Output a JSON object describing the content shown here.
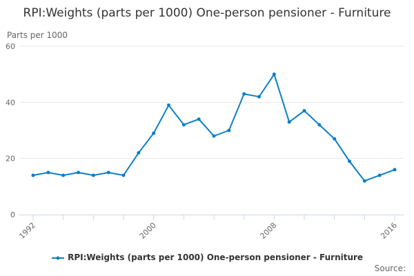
{
  "chart_data": {
    "type": "line",
    "title": "RPI:Weights (parts per 1000) One-person pensioner - Furniture",
    "ylabel": "Parts per 1000",
    "xlabel": "",
    "ylim": [
      0,
      60
    ],
    "yticks": [
      0,
      20,
      40,
      60
    ],
    "xtick_labels": [
      "1992",
      "2000",
      "2008",
      "2016"
    ],
    "grid": true,
    "legend_position": "bottom",
    "color": "#0a7fc4",
    "x": [
      1992,
      1993,
      1994,
      1995,
      1996,
      1997,
      1998,
      1999,
      2000,
      2001,
      2002,
      2003,
      2004,
      2005,
      2006,
      2007,
      2008,
      2009,
      2010,
      2011,
      2012,
      2013,
      2014,
      2015,
      2016
    ],
    "series": [
      {
        "name": "RPI:Weights (parts per 1000) One-person pensioner - Furniture",
        "values": [
          14,
          15,
          14,
          15,
          14,
          15,
          14,
          22,
          29,
          39,
          32,
          34,
          28,
          30,
          43,
          42,
          50,
          33,
          37,
          32,
          27,
          19,
          12,
          14,
          16
        ]
      }
    ]
  },
  "source_label": "Source:"
}
